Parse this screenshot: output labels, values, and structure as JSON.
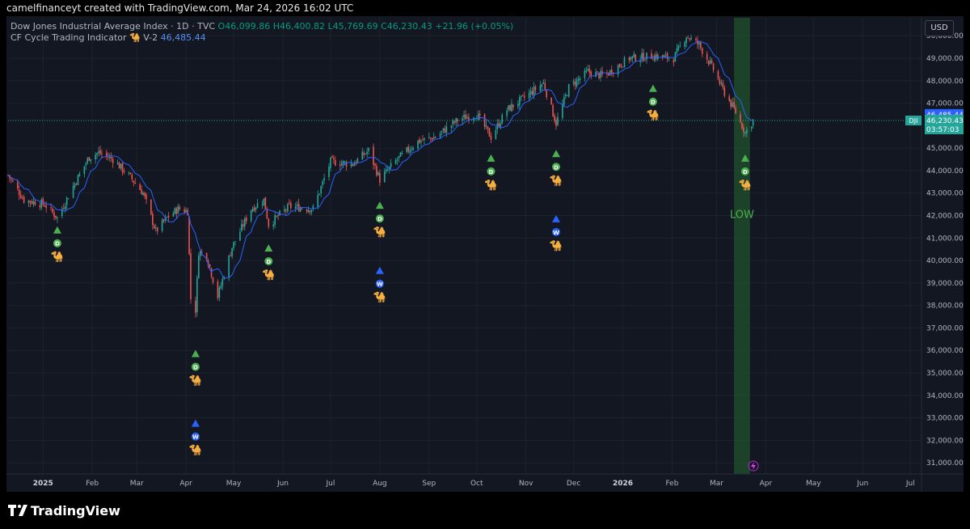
{
  "attribution": "camelfinanceyt created with TradingView.com, Mar 24, 2026 16:02 UTC",
  "legend": {
    "line1_prefix": "Dow Jones Industrial Average Index · 1D · TVC",
    "open": "O46,099.86",
    "high": "H46,400.82",
    "low": "L45,769.69",
    "close": "C46,230.43",
    "change": "+21.96 (+0.05%)",
    "line2_prefix": "CF Cycle Trading Indicator 🐪 V-2",
    "indicator_value": "46,485.44"
  },
  "currency": "USD",
  "brand": "TradingView",
  "colors": {
    "background": "#131722",
    "up": "#26a69a",
    "down": "#ef5350",
    "ma": "#2962ff",
    "signal_green": "#4caf50",
    "signal_blue": "#2962ff",
    "highlight": "#1f4d2c"
  },
  "chart_data": {
    "type": "candlestick",
    "title": "Dow Jones Industrial Average Index · 1D · TVC",
    "y_axis": {
      "min": 31000,
      "max": 50000,
      "ticks": [
        "50,000.00",
        "49,000.00",
        "48,000.00",
        "47,000.00",
        "45,000.00",
        "44,000.00",
        "43,000.00",
        "42,000.00",
        "41,000.00",
        "40,000.00",
        "39,000.00",
        "38,000.00",
        "37,000.00",
        "36,000.00",
        "35,000.00",
        "34,000.00",
        "33,000.00",
        "32,000.00",
        "31,000.00"
      ],
      "tick_values": [
        50000,
        49000,
        48000,
        47000,
        45000,
        44000,
        43000,
        42000,
        41000,
        40000,
        39000,
        38000,
        37000,
        36000,
        35000,
        34000,
        33000,
        32000,
        31000
      ]
    },
    "x_axis": {
      "labels": [
        "2025",
        "Feb",
        "Mar",
        "Apr",
        "May",
        "Jun",
        "Jul",
        "Aug",
        "Sep",
        "Oct",
        "Nov",
        "Dec",
        "2026",
        "Feb",
        "Mar",
        "Apr",
        "May",
        "Jun",
        "Jul"
      ],
      "dates": [
        "2025-01-01",
        "2025-02-01",
        "2025-03-01",
        "2025-04-01",
        "2025-05-01",
        "2025-06-01",
        "2025-07-01",
        "2025-08-01",
        "2025-09-01",
        "2025-10-01",
        "2025-11-01",
        "2025-12-01",
        "2026-01-01",
        "2026-02-01",
        "2026-03-01",
        "2026-04-01",
        "2026-05-01",
        "2026-06-01",
        "2026-07-01"
      ],
      "range": [
        "2024-12-10",
        "2026-07-08"
      ]
    },
    "price_path": [
      [
        "2024-12-10",
        43800
      ],
      [
        "2024-12-20",
        42700
      ],
      [
        "2025-01-02",
        42500
      ],
      [
        "2025-01-10",
        41900
      ],
      [
        "2025-01-20",
        43300
      ],
      [
        "2025-01-30",
        44600
      ],
      [
        "2025-02-05",
        44800
      ],
      [
        "2025-02-14",
        44500
      ],
      [
        "2025-02-25",
        43700
      ],
      [
        "2025-03-05",
        43000
      ],
      [
        "2025-03-13",
        41300
      ],
      [
        "2025-03-20",
        41900
      ],
      [
        "2025-03-27",
        42300
      ],
      [
        "2025-04-02",
        42200
      ],
      [
        "2025-04-04",
        38300
      ],
      [
        "2025-04-07",
        37800
      ],
      [
        "2025-04-09",
        40400
      ],
      [
        "2025-04-14",
        40200
      ],
      [
        "2025-04-21",
        38400
      ],
      [
        "2025-04-30",
        40600
      ],
      [
        "2025-05-12",
        42300
      ],
      [
        "2025-05-20",
        42700
      ],
      [
        "2025-05-23",
        41600
      ],
      [
        "2025-06-05",
        42400
      ],
      [
        "2025-06-20",
        42300
      ],
      [
        "2025-07-01",
        44400
      ],
      [
        "2025-07-15",
        44300
      ],
      [
        "2025-07-25",
        44900
      ],
      [
        "2025-08-01",
        43600
      ],
      [
        "2025-08-12",
        44500
      ],
      [
        "2025-08-25",
        45300
      ],
      [
        "2025-09-05",
        45500
      ],
      [
        "2025-09-20",
        46300
      ],
      [
        "2025-10-01",
        46500
      ],
      [
        "2025-10-10",
        45500
      ],
      [
        "2025-10-20",
        46700
      ],
      [
        "2025-11-01",
        47300
      ],
      [
        "2025-11-12",
        47900
      ],
      [
        "2025-11-20",
        46100
      ],
      [
        "2025-11-28",
        47700
      ],
      [
        "2025-12-10",
        48400
      ],
      [
        "2025-12-20",
        48200
      ],
      [
        "2026-01-05",
        49000
      ],
      [
        "2026-01-20",
        49100
      ],
      [
        "2026-02-02",
        49000
      ],
      [
        "2026-02-10",
        50000
      ],
      [
        "2026-02-18",
        49600
      ],
      [
        "2026-02-27",
        48500
      ],
      [
        "2026-03-05",
        47600
      ],
      [
        "2026-03-13",
        46600
      ],
      [
        "2026-03-19",
        45700
      ],
      [
        "2026-03-24",
        46230
      ]
    ],
    "current_price": {
      "label": "DJI",
      "value": "46,230.43",
      "countdown": "03:57:03",
      "numeric": 46230.43
    },
    "indicator_price": {
      "value": "46,485.44",
      "numeric": 46485.44
    },
    "signals": [
      {
        "date": "2025-01-10",
        "kind": "D",
        "color": "green",
        "price": 41200
      },
      {
        "date": "2025-04-07",
        "kind": "D",
        "color": "green",
        "price": 35700
      },
      {
        "date": "2025-04-07",
        "kind": "W",
        "color": "blue",
        "price": 32600
      },
      {
        "date": "2025-05-23",
        "kind": "D",
        "color": "green",
        "price": 40400
      },
      {
        "date": "2025-08-01",
        "kind": "D",
        "color": "green",
        "price": 42300
      },
      {
        "date": "2025-08-01",
        "kind": "W",
        "color": "blue",
        "price": 39400
      },
      {
        "date": "2025-10-10",
        "kind": "D",
        "color": "green",
        "price": 44400
      },
      {
        "date": "2025-11-20",
        "kind": "D",
        "color": "green",
        "price": 44600
      },
      {
        "date": "2025-11-20",
        "kind": "W",
        "color": "blue",
        "price": 41700
      },
      {
        "date": "2026-01-20",
        "kind": "D",
        "color": "green",
        "price": 47500
      },
      {
        "date": "2026-03-19",
        "kind": "D",
        "color": "green",
        "price": 44400
      }
    ],
    "highlight": {
      "start": "2026-03-12",
      "end": "2026-03-22",
      "label": "LOW"
    },
    "legend": "top-left",
    "grid": true
  }
}
